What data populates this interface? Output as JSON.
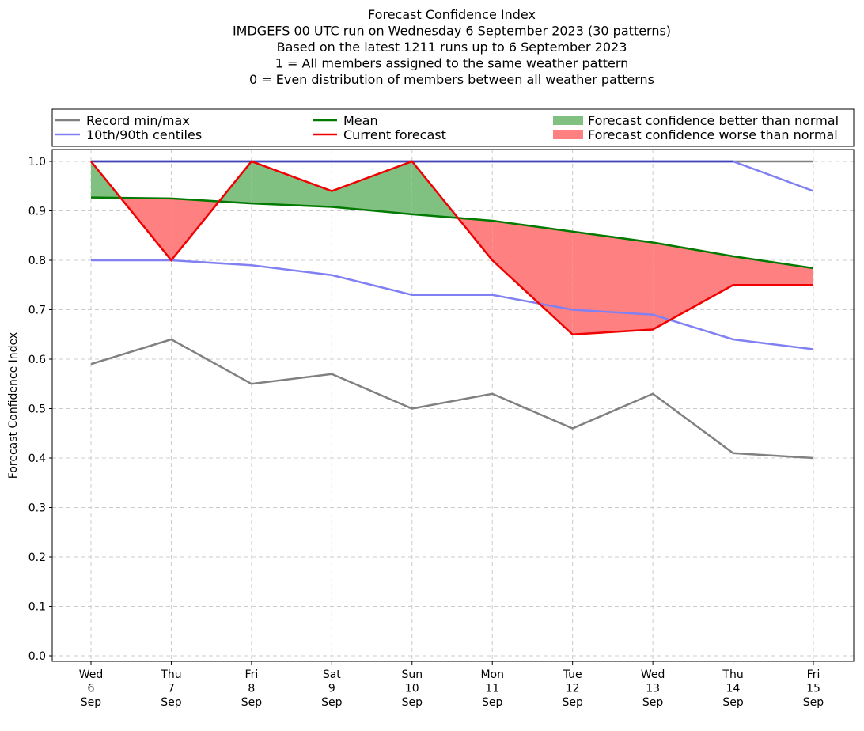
{
  "chart_data": {
    "type": "line",
    "title_lines": [
      "Forecast Confidence Index",
      "IMDGEFS 00 UTC run on Wednesday 6 September 2023 (30 patterns)",
      "Based on the latest 1211 runs up to 6 September 2023",
      "1 = All members assigned to the same weather pattern",
      "0 = Even distribution of members between all weather patterns"
    ],
    "ylabel": "Forecast Confidence Index",
    "xlabel": "",
    "ylim": [
      0.0,
      1.0
    ],
    "yticks": [
      "0.0",
      "0.1",
      "0.2",
      "0.3",
      "0.4",
      "0.5",
      "0.6",
      "0.7",
      "0.8",
      "0.9",
      "1.0"
    ],
    "categories": [
      [
        "Wed",
        "6",
        "Sep"
      ],
      [
        "Thu",
        "7",
        "Sep"
      ],
      [
        "Fri",
        "8",
        "Sep"
      ],
      [
        "Sat",
        "9",
        "Sep"
      ],
      [
        "Sun",
        "10",
        "Sep"
      ],
      [
        "Mon",
        "11",
        "Sep"
      ],
      [
        "Tue",
        "12",
        "Sep"
      ],
      [
        "Wed",
        "13",
        "Sep"
      ],
      [
        "Thu",
        "14",
        "Sep"
      ],
      [
        "Fri",
        "15",
        "Sep"
      ]
    ],
    "grid": true,
    "legend_placement": "top",
    "series": {
      "record_max": [
        1.0,
        1.0,
        1.0,
        1.0,
        1.0,
        1.0,
        1.0,
        1.0,
        1.0,
        1.0
      ],
      "record_min": [
        0.59,
        0.64,
        0.55,
        0.57,
        0.5,
        0.53,
        0.46,
        0.53,
        0.41,
        0.4
      ],
      "centile_90": [
        1.0,
        1.0,
        1.0,
        1.0,
        1.0,
        1.0,
        1.0,
        1.0,
        1.0,
        0.94
      ],
      "centile_10": [
        0.8,
        0.8,
        0.79,
        0.77,
        0.73,
        0.73,
        0.7,
        0.69,
        0.64,
        0.62
      ],
      "mean": [
        0.927,
        0.925,
        0.915,
        0.908,
        0.893,
        0.88,
        0.858,
        0.836,
        0.808,
        0.784
      ],
      "current": [
        1.0,
        0.8,
        1.0,
        0.94,
        1.0,
        0.8,
        0.65,
        0.66,
        0.75,
        0.75
      ]
    },
    "legend": [
      {
        "label": "Record min/max",
        "color": "#808080",
        "kind": "line"
      },
      {
        "label": "10th/90th centiles",
        "color": "#8080f2",
        "kind": "line"
      },
      {
        "label": "Mean",
        "color": "#007a00",
        "kind": "line"
      },
      {
        "label": "Current forecast",
        "color": "#f00000",
        "kind": "line"
      },
      {
        "label": "Forecast confidence better than normal",
        "color": "#80c080",
        "kind": "patch"
      },
      {
        "label": "Forecast confidence worse than normal",
        "color": "#ff8080",
        "kind": "patch"
      }
    ],
    "colors": {
      "record": "#808080",
      "centile": "#8080f2",
      "centile_overlap": "#4040b8",
      "mean": "#007a00",
      "current": "#f00000",
      "better_fill": "#80c080",
      "worse_fill": "#ff8080"
    }
  }
}
